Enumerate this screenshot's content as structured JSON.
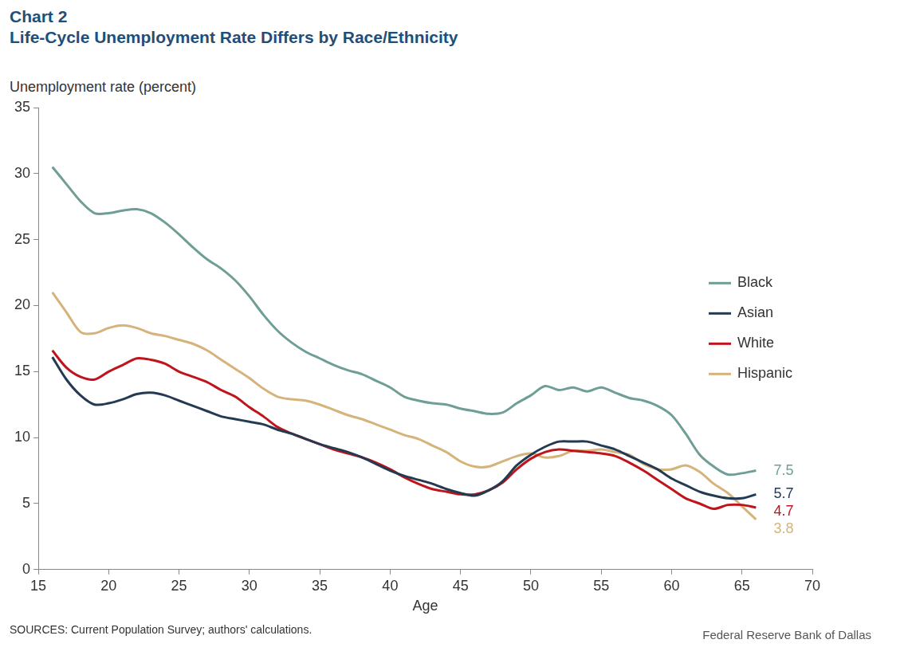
{
  "chart_data": {
    "type": "line",
    "title": "Chart 2",
    "subtitle": "Life-Cycle Unemployment Rate Differs by Race/Ethnicity",
    "ylabel": "Unemployment rate (percent)",
    "xlabel": "Age",
    "source": "SOURCES: Current Population Survey; authors' calculations.",
    "credit": "Federal Reserve Bank of Dallas",
    "x": [
      16,
      17,
      18,
      19,
      20,
      21,
      22,
      23,
      24,
      25,
      26,
      27,
      28,
      29,
      30,
      31,
      32,
      33,
      34,
      35,
      36,
      37,
      38,
      39,
      40,
      41,
      42,
      43,
      44,
      45,
      46,
      47,
      48,
      49,
      50,
      51,
      52,
      53,
      54,
      55,
      56,
      57,
      58,
      59,
      60,
      61,
      62,
      63,
      64,
      65,
      66
    ],
    "series": [
      {
        "name": "Black",
        "color": "#6f9e97",
        "values": [
          30.5,
          29.2,
          27.9,
          27.0,
          27.0,
          27.2,
          27.3,
          27.0,
          26.3,
          25.4,
          24.4,
          23.5,
          22.8,
          21.9,
          20.7,
          19.3,
          18.1,
          17.2,
          16.5,
          16.0,
          15.5,
          15.1,
          14.8,
          14.3,
          13.8,
          13.1,
          12.8,
          12.6,
          12.5,
          12.2,
          12.0,
          11.8,
          11.9,
          12.6,
          13.2,
          13.9,
          13.6,
          13.8,
          13.5,
          13.8,
          13.4,
          13.0,
          12.8,
          12.4,
          11.7,
          10.3,
          8.7,
          7.8,
          7.2,
          7.3,
          7.5
        ]
      },
      {
        "name": "Asian",
        "color": "#243a52",
        "values": [
          16.1,
          14.4,
          13.2,
          12.5,
          12.6,
          12.9,
          13.3,
          13.4,
          13.2,
          12.8,
          12.4,
          12.0,
          11.6,
          11.4,
          11.2,
          11.0,
          10.6,
          10.3,
          9.9,
          9.5,
          9.2,
          8.9,
          8.5,
          8.0,
          7.5,
          7.1,
          6.8,
          6.5,
          6.1,
          5.8,
          5.6,
          6.0,
          6.7,
          7.9,
          8.7,
          9.3,
          9.7,
          9.7,
          9.7,
          9.4,
          9.1,
          8.6,
          8.1,
          7.6,
          6.9,
          6.4,
          5.9,
          5.6,
          5.4,
          5.4,
          5.7
        ]
      },
      {
        "name": "White",
        "color": "#c0141c",
        "values": [
          16.6,
          15.3,
          14.6,
          14.4,
          15.0,
          15.5,
          16.0,
          15.9,
          15.6,
          15.0,
          14.6,
          14.2,
          13.6,
          13.1,
          12.3,
          11.6,
          10.8,
          10.3,
          9.9,
          9.5,
          9.1,
          8.8,
          8.5,
          8.1,
          7.6,
          7.0,
          6.5,
          6.1,
          5.9,
          5.7,
          5.7,
          6.0,
          6.6,
          7.6,
          8.4,
          8.9,
          9.1,
          9.0,
          8.9,
          8.8,
          8.6,
          8.1,
          7.5,
          6.8,
          6.1,
          5.4,
          5.0,
          4.6,
          4.9,
          4.9,
          4.7
        ]
      },
      {
        "name": "Hispanic",
        "color": "#d6b37a",
        "values": [
          21.0,
          19.5,
          18.0,
          17.9,
          18.3,
          18.5,
          18.3,
          17.9,
          17.7,
          17.4,
          17.1,
          16.6,
          15.9,
          15.2,
          14.5,
          13.7,
          13.1,
          12.9,
          12.8,
          12.5,
          12.1,
          11.7,
          11.4,
          11.0,
          10.6,
          10.2,
          9.9,
          9.4,
          8.9,
          8.2,
          7.8,
          7.8,
          8.2,
          8.6,
          8.8,
          8.5,
          8.6,
          9.0,
          9.0,
          9.1,
          8.9,
          8.7,
          8.0,
          7.6,
          7.6,
          7.9,
          7.4,
          6.5,
          5.8,
          4.8,
          3.8
        ]
      }
    ],
    "annotations": [
      {
        "text": "7.5",
        "series": "Black"
      },
      {
        "text": "5.7",
        "series": "Asian"
      },
      {
        "text": "4.7",
        "series": "White"
      },
      {
        "text": "3.8",
        "series": "Hispanic"
      }
    ],
    "xlim": [
      15,
      70
    ],
    "xticks": [
      15,
      20,
      25,
      30,
      35,
      40,
      45,
      50,
      55,
      60,
      65,
      70
    ],
    "ylim": [
      0,
      35
    ],
    "yticks": [
      0,
      5,
      10,
      15,
      20,
      25,
      30,
      35
    ],
    "grid": false,
    "legend": "right"
  }
}
